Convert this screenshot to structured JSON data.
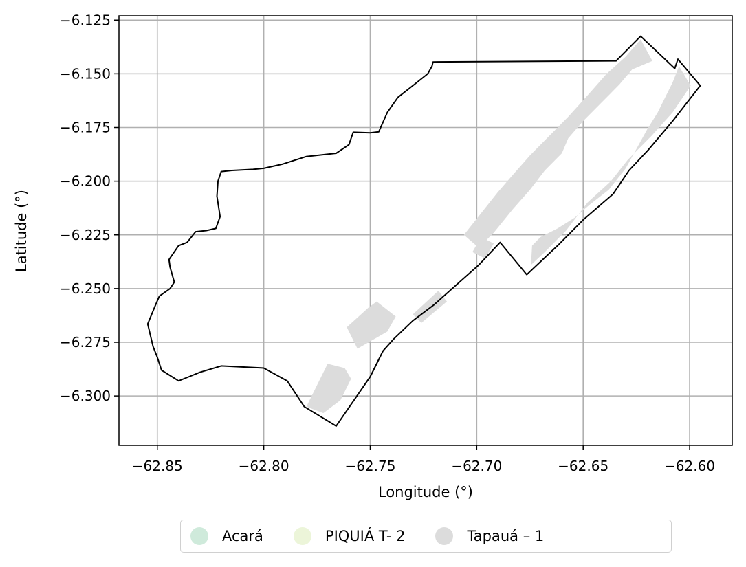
{
  "chart_data": {
    "type": "map",
    "xlabel": "Longitude (°)",
    "ylabel": "Latitude (°)",
    "xlim": [
      -62.868,
      -62.58
    ],
    "ylim": [
      -6.323,
      -6.123
    ],
    "xticks": [
      -62.85,
      -62.8,
      -62.75,
      -62.7,
      -62.65,
      -62.6
    ],
    "xtick_labels": [
      "−62.85",
      "−62.80",
      "−62.75",
      "−62.70",
      "−62.65",
      "−62.60"
    ],
    "yticks": [
      -6.125,
      -6.15,
      -6.175,
      -6.2,
      -6.225,
      -6.25,
      -6.275,
      -6.3
    ],
    "ytick_labels": [
      "−6.125",
      "−6.150",
      "−6.175",
      "−6.200",
      "−6.225",
      "−6.250",
      "−6.275",
      "−6.300"
    ],
    "grid": true,
    "legend": {
      "placement": "bottom-center",
      "entries": [
        {
          "label": "Acará",
          "color": "#cfeadb"
        },
        {
          "label": "PIQUIÁ T- 2",
          "color": "#ecf5d9"
        },
        {
          "label": "Tapauá – 1",
          "color": "#dcdcdc"
        }
      ]
    },
    "boundary": {
      "name": "",
      "stroke": "#000000",
      "coordinates": [
        [
          -62.7205,
          -6.1445
        ],
        [
          -62.6345,
          -6.144
        ],
        [
          -62.623,
          -6.1325
        ],
        [
          -62.607,
          -6.1475
        ],
        [
          -62.6055,
          -6.1432
        ],
        [
          -62.595,
          -6.1555
        ],
        [
          -62.608,
          -6.172
        ],
        [
          -62.6195,
          -6.1855
        ],
        [
          -62.6285,
          -6.195
        ],
        [
          -62.636,
          -6.206
        ],
        [
          -62.65,
          -6.218
        ],
        [
          -62.662,
          -6.23
        ],
        [
          -62.6765,
          -6.2435
        ],
        [
          -62.689,
          -6.2285
        ],
        [
          -62.699,
          -6.239
        ],
        [
          -62.72,
          -6.2575
        ],
        [
          -62.73,
          -6.265
        ],
        [
          -62.739,
          -6.2735
        ],
        [
          -62.744,
          -6.279
        ],
        [
          -62.75,
          -6.291
        ],
        [
          -62.766,
          -6.314
        ],
        [
          -62.781,
          -6.305
        ],
        [
          -62.789,
          -6.293
        ],
        [
          -62.8,
          -6.287
        ],
        [
          -62.82,
          -6.286
        ],
        [
          -62.83,
          -6.289
        ],
        [
          -62.835,
          -6.291
        ],
        [
          -62.84,
          -6.293
        ],
        [
          -62.848,
          -6.288
        ],
        [
          -62.85,
          -6.282
        ],
        [
          -62.852,
          -6.277
        ],
        [
          -62.8545,
          -6.2665
        ],
        [
          -62.851,
          -6.258
        ],
        [
          -62.849,
          -6.2535
        ],
        [
          -62.844,
          -6.25
        ],
        [
          -62.842,
          -6.247
        ],
        [
          -62.844,
          -6.24
        ],
        [
          -62.8445,
          -6.2365
        ],
        [
          -62.84,
          -6.23
        ],
        [
          -62.836,
          -6.2285
        ],
        [
          -62.832,
          -6.2235
        ],
        [
          -62.827,
          -6.223
        ],
        [
          -62.8225,
          -6.222
        ],
        [
          -62.8205,
          -6.2165
        ],
        [
          -62.822,
          -6.207
        ],
        [
          -62.8215,
          -6.2
        ],
        [
          -62.82,
          -6.1955
        ],
        [
          -62.815,
          -6.195
        ],
        [
          -62.805,
          -6.1945
        ],
        [
          -62.8,
          -6.194
        ],
        [
          -62.791,
          -6.192
        ],
        [
          -62.78,
          -6.1885
        ],
        [
          -62.766,
          -6.187
        ],
        [
          -62.76,
          -6.183
        ],
        [
          -62.758,
          -6.1772
        ],
        [
          -62.75,
          -6.1775
        ],
        [
          -62.746,
          -6.177
        ],
        [
          -62.742,
          -6.168
        ],
        [
          -62.737,
          -6.161
        ],
        [
          -62.73,
          -6.1555
        ],
        [
          -62.723,
          -6.15
        ],
        [
          -62.721,
          -6.1465
        ],
        [
          -62.7205,
          -6.1445
        ]
      ]
    },
    "survey_polygons": [
      {
        "name": "Tapauá – 1",
        "color": "#dcdcdc",
        "coordinates": [
          [
            -62.623,
            -6.134
          ],
          [
            -62.6175,
            -6.144
          ],
          [
            -62.627,
            -6.148
          ],
          [
            -62.633,
            -6.155
          ],
          [
            -62.64,
            -6.162
          ],
          [
            -62.65,
            -6.172
          ],
          [
            -62.657,
            -6.18
          ],
          [
            -62.66,
            -6.187
          ],
          [
            -62.668,
            -6.195
          ],
          [
            -62.675,
            -6.204
          ],
          [
            -62.683,
            -6.213
          ],
          [
            -62.692,
            -6.224
          ],
          [
            -62.699,
            -6.231
          ],
          [
            -62.706,
            -6.225
          ],
          [
            -62.698,
            -6.215
          ],
          [
            -62.69,
            -6.205
          ],
          [
            -62.683,
            -6.197
          ],
          [
            -62.675,
            -6.188
          ],
          [
            -62.666,
            -6.179
          ],
          [
            -62.657,
            -6.17
          ],
          [
            -62.647,
            -6.159
          ],
          [
            -62.639,
            -6.15
          ],
          [
            -62.63,
            -6.142
          ]
        ]
      },
      {
        "name": "Tapauá – 1",
        "color": "#dcdcdc",
        "coordinates": [
          [
            -62.605,
            -6.1465
          ],
          [
            -62.5995,
            -6.1555
          ],
          [
            -62.608,
            -6.168
          ],
          [
            -62.618,
            -6.179
          ],
          [
            -62.629,
            -6.19
          ],
          [
            -62.637,
            -6.2
          ],
          [
            -62.648,
            -6.21
          ],
          [
            -62.658,
            -6.223
          ],
          [
            -62.668,
            -6.233
          ],
          [
            -62.6745,
            -6.239
          ],
          [
            -62.674,
            -6.23
          ],
          [
            -62.67,
            -6.226
          ],
          [
            -62.662,
            -6.222
          ],
          [
            -62.654,
            -6.217
          ],
          [
            -62.647,
            -6.211
          ],
          [
            -62.638,
            -6.204
          ],
          [
            -62.63,
            -6.194
          ],
          [
            -62.625,
            -6.185
          ],
          [
            -62.62,
            -6.176
          ],
          [
            -62.615,
            -6.168
          ],
          [
            -62.611,
            -6.16
          ],
          [
            -62.608,
            -6.154
          ]
        ]
      },
      {
        "name": "Tapauá – 1",
        "color": "#dcdcdc",
        "coordinates": [
          [
            -62.718,
            -6.251
          ],
          [
            -62.714,
            -6.256
          ],
          [
            -62.726,
            -6.266
          ],
          [
            -62.73,
            -6.262
          ]
        ]
      },
      {
        "name": "Tapauá – 1",
        "color": "#dcdcdc",
        "coordinates": [
          [
            -62.751,
            -6.259
          ],
          [
            -62.761,
            -6.268
          ],
          [
            -62.756,
            -6.278
          ],
          [
            -62.742,
            -6.27
          ],
          [
            -62.738,
            -6.263
          ],
          [
            -62.747,
            -6.256
          ]
        ]
      },
      {
        "name": "Tapauá – 1",
        "color": "#dcdcdc",
        "coordinates": [
          [
            -62.77,
            -6.285
          ],
          [
            -62.78,
            -6.305
          ],
          [
            -62.772,
            -6.308
          ],
          [
            -62.764,
            -6.302
          ],
          [
            -62.759,
            -6.292
          ],
          [
            -62.762,
            -6.287
          ]
        ]
      },
      {
        "name": "Tapauá – 1",
        "color": "#dcdcdc",
        "coordinates": [
          [
            -62.702,
            -6.233
          ],
          [
            -62.696,
            -6.236
          ],
          [
            -62.692,
            -6.229
          ],
          [
            -62.698,
            -6.226
          ]
        ]
      }
    ]
  }
}
